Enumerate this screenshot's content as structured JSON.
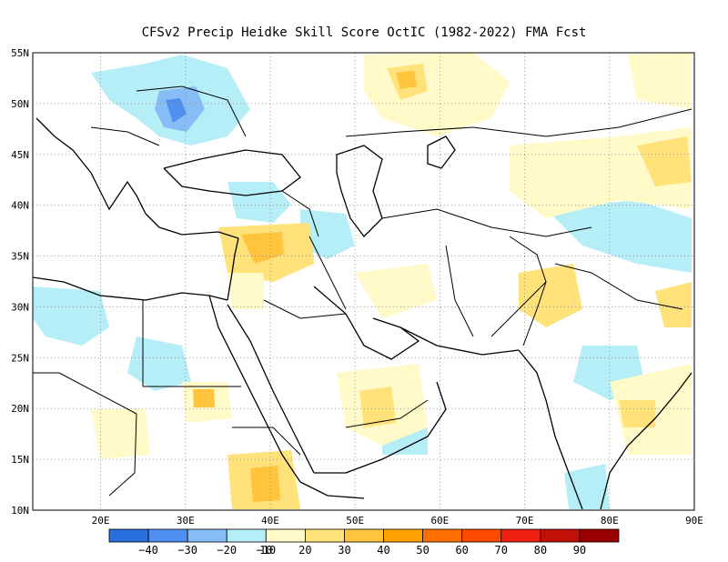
{
  "title": "CFSv2 Precip Heidke Skill Score OctIC (1982-2022) FMA Fcst",
  "map": {
    "lon_range": [
      12,
      90
    ],
    "lat_range": [
      10,
      55
    ],
    "lon_ticks": [
      20,
      30,
      40,
      50,
      60,
      70,
      80,
      90
    ],
    "lat_ticks": [
      10,
      15,
      20,
      25,
      30,
      35,
      40,
      45,
      50,
      55
    ],
    "lon_labels": [
      "20E",
      "30E",
      "40E",
      "50E",
      "60E",
      "70E",
      "80E",
      "90E"
    ],
    "lat_labels": [
      "10N",
      "15N",
      "20N",
      "25N",
      "30N",
      "35N",
      "40N",
      "45N",
      "50N",
      "55N"
    ],
    "grid": "dotted"
  },
  "colorbar": {
    "colors": [
      "#2a6fe0",
      "#4f8ff0",
      "#87bdf6",
      "#b6eef8",
      "#fffac7",
      "#ffe27a",
      "#ffc33c",
      "#ffa000",
      "#ff7000",
      "#ff4a00",
      "#f02010",
      "#c01008",
      "#9a0000"
    ],
    "labels": [
      "-40",
      "-30",
      "-20",
      "-10",
      "10",
      "20",
      "30",
      "40",
      "50",
      "60",
      "70",
      "80",
      "90"
    ]
  }
}
